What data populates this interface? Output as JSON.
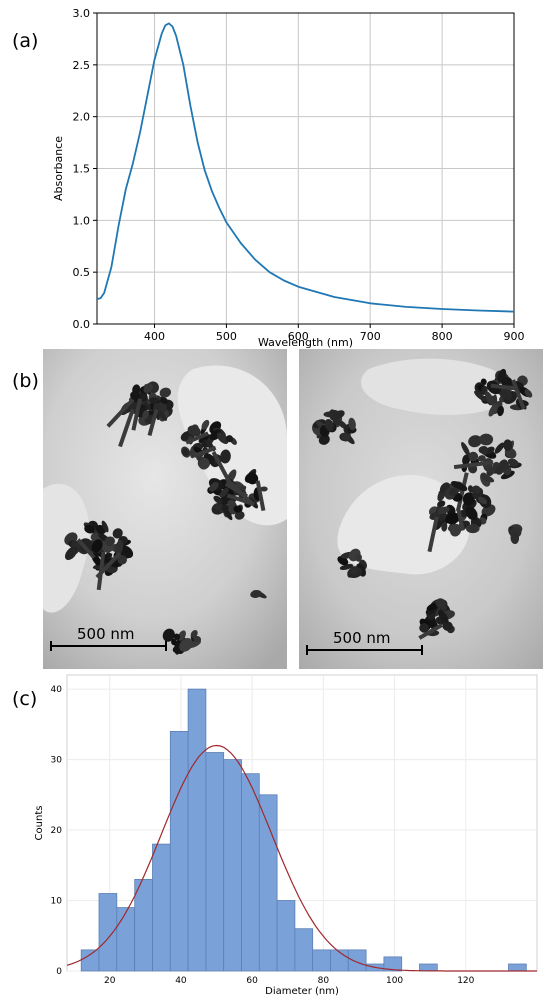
{
  "figure": {
    "labels": {
      "a": "(a)",
      "b": "(b)",
      "c": "(c)"
    }
  },
  "tem": {
    "left_scale": "500 nm",
    "right_scale": "500 nm"
  },
  "chart_data": [
    {
      "type": "line",
      "panel": "a",
      "xlabel": "Wavelength (nm)",
      "ylabel": "Absorbance",
      "xlim": [
        320,
        900
      ],
      "ylim": [
        0.0,
        3.0
      ],
      "xticks": [
        400,
        500,
        600,
        700,
        800,
        900
      ],
      "yticks": [
        0.0,
        0.5,
        1.0,
        1.5,
        2.0,
        2.5,
        3.0
      ],
      "grid": true,
      "color": "#1f77b4",
      "series": [
        {
          "x": [
            320,
            325,
            330,
            340,
            350,
            360,
            370,
            380,
            390,
            400,
            410,
            415,
            420,
            425,
            430,
            440,
            450,
            460,
            470,
            480,
            490,
            500,
            520,
            540,
            560,
            580,
            600,
            650,
            700,
            750,
            800,
            850,
            900
          ],
          "y": [
            0.24,
            0.25,
            0.3,
            0.55,
            0.95,
            1.3,
            1.55,
            1.85,
            2.2,
            2.55,
            2.8,
            2.88,
            2.9,
            2.87,
            2.78,
            2.5,
            2.1,
            1.75,
            1.48,
            1.28,
            1.12,
            0.98,
            0.78,
            0.62,
            0.5,
            0.42,
            0.36,
            0.26,
            0.2,
            0.165,
            0.145,
            0.13,
            0.12
          ]
        }
      ]
    },
    {
      "type": "bar",
      "panel": "c",
      "xlabel": "Diameter (nm)",
      "ylabel": "Counts",
      "xlim": [
        8,
        140
      ],
      "ylim": [
        0,
        42
      ],
      "xticks": [
        20,
        40,
        60,
        80,
        100,
        120
      ],
      "yticks": [
        0,
        10,
        20,
        30,
        40
      ],
      "grid": true,
      "bar_color": "#7ba2d8",
      "bin_width": 5,
      "bin_starts": [
        12,
        17,
        22,
        27,
        32,
        37,
        42,
        47,
        52,
        57,
        62,
        67,
        72,
        77,
        82,
        87,
        92,
        97,
        102,
        107,
        112,
        117,
        122,
        127,
        132
      ],
      "values": [
        3,
        11,
        9,
        13,
        18,
        34,
        40,
        31,
        30,
        28,
        25,
        10,
        6,
        3,
        3,
        3,
        1,
        2,
        0,
        1,
        0,
        0,
        0,
        0,
        1
      ],
      "fit_curve": {
        "type": "normal",
        "color": "#a0282d",
        "mean": 50,
        "sd": 15.5,
        "peak": 32
      }
    }
  ]
}
